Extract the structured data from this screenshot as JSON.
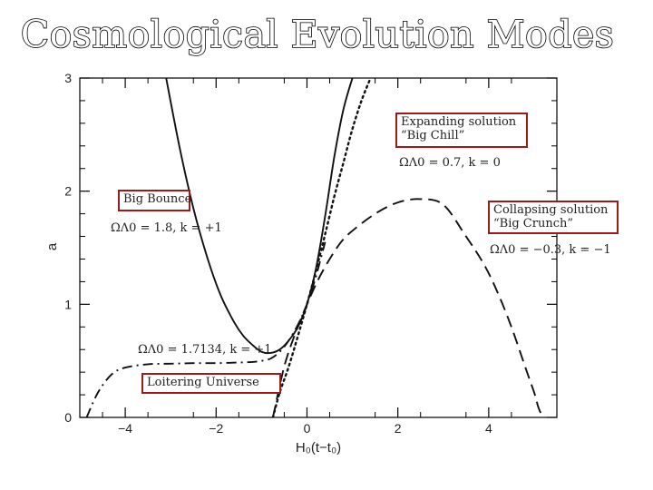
{
  "slide": {
    "title": "Cosmological Evolution Modes"
  },
  "colors": {
    "curve": "#111111",
    "callout_border": "#9b1b1b",
    "axis": "#000000"
  },
  "chart_data": {
    "type": "line",
    "title": "",
    "xlabel": "H₀(t−t₀)",
    "ylabel": "a",
    "xlim": [
      -5.0,
      5.5
    ],
    "ylim": [
      0,
      3
    ],
    "x_ticks": [
      -4,
      -2,
      0,
      2,
      4
    ],
    "y_ticks": [
      0,
      1,
      2,
      3
    ],
    "grid": false,
    "series": [
      {
        "name": "Big Bounce",
        "params_label": "ΩΛ0 = 1.8,   k = +1",
        "line_style": "solid",
        "x": [
          -3.1,
          -2.8,
          -2.5,
          -2.2,
          -1.9,
          -1.6,
          -1.4,
          -1.2,
          -1.0,
          -0.8,
          -0.6,
          -0.4,
          -0.2,
          0.0,
          0.2,
          0.4,
          0.6,
          0.8,
          1.0
        ],
        "y": [
          3.0,
          2.38,
          1.85,
          1.42,
          1.08,
          0.84,
          0.72,
          0.64,
          0.58,
          0.57,
          0.6,
          0.68,
          0.8,
          1.0,
          1.32,
          1.78,
          2.3,
          2.72,
          3.0
        ]
      },
      {
        "name": "Expanding solution “Big Chill”",
        "params_label": "ΩΛ0 = 0.7,   k = 0",
        "line_style": "dotted",
        "x": [
          -0.75,
          -0.6,
          -0.4,
          -0.2,
          0.0,
          0.2,
          0.4,
          0.6,
          0.8,
          1.0,
          1.2,
          1.4
        ],
        "y": [
          0.0,
          0.22,
          0.45,
          0.72,
          1.0,
          1.3,
          1.62,
          1.95,
          2.25,
          2.55,
          2.8,
          3.0
        ]
      },
      {
        "name": "Collapsing solution “Big Crunch”",
        "params_label": "ΩΛ0 = −0.3,   k = −1",
        "line_style": "dashed",
        "x": [
          -0.75,
          -0.5,
          -0.25,
          0.0,
          0.25,
          0.5,
          0.75,
          1.0,
          1.5,
          2.0,
          2.5,
          3.0,
          3.5,
          3.9,
          4.2,
          4.5,
          4.8,
          5.0,
          5.1,
          5.2
        ],
        "y": [
          0.0,
          0.45,
          0.75,
          1.0,
          1.22,
          1.4,
          1.55,
          1.65,
          1.8,
          1.9,
          1.93,
          1.88,
          1.6,
          1.35,
          1.1,
          0.8,
          0.45,
          0.22,
          0.08,
          0.0
        ]
      },
      {
        "name": "Loitering Universe",
        "params_label": "ΩΛ0 = 1.7134,   k = +1",
        "line_style": "dash-dot",
        "x": [
          -4.85,
          -4.6,
          -4.3,
          -4.0,
          -3.5,
          -3.0,
          -2.5,
          -2.0,
          -1.5,
          -1.2,
          -1.0,
          -0.8,
          -0.6,
          -0.4,
          -0.2,
          0.0,
          0.2,
          0.4
        ],
        "y": [
          0.0,
          0.22,
          0.38,
          0.44,
          0.47,
          0.475,
          0.48,
          0.48,
          0.485,
          0.49,
          0.5,
          0.52,
          0.58,
          0.68,
          0.82,
          1.0,
          1.25,
          1.55
        ]
      }
    ]
  },
  "callouts": {
    "chill_line1": "Expanding solution",
    "chill_line2": "“Big Chill”",
    "bounce": "Big Bounce",
    "crunch_line1": "Collapsing solution",
    "crunch_line2": "“Big Crunch”",
    "loiter": "Loitering Universe"
  }
}
